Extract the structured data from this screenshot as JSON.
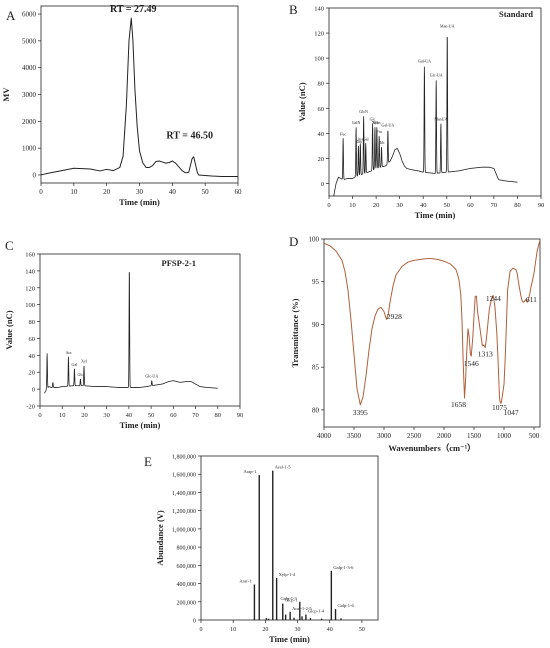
{
  "colors": {
    "ink": "#222222",
    "ir_line": "#b0603a",
    "axis": "#222222"
  },
  "chart_data": [
    {
      "id": "A",
      "panel_letter": "A",
      "type": "line",
      "title": "",
      "xlabel": "Time (min)",
      "ylabel": "MV",
      "xlim": [
        0,
        60
      ],
      "ylim": [
        -300,
        6300
      ],
      "xticks": [
        0,
        10,
        20,
        30,
        40,
        50,
        60
      ],
      "yticks": [
        0,
        1000,
        2000,
        3000,
        4000,
        5000,
        6000
      ],
      "series": [
        {
          "x": [
            0,
            2,
            5,
            10,
            15,
            18,
            20,
            22,
            24,
            25,
            26,
            26.8,
            27.49,
            28,
            28.6,
            29.3,
            30,
            31,
            32,
            33,
            34,
            35,
            36,
            37,
            38,
            39,
            40,
            41,
            42,
            43,
            44,
            45,
            45.6,
            46,
            46.5,
            47,
            47.6,
            48,
            50,
            52,
            55,
            58,
            60
          ],
          "y": [
            0,
            60,
            130,
            250,
            220,
            150,
            210,
            160,
            280,
            700,
            2600,
            5000,
            5850,
            5000,
            3200,
            1800,
            900,
            450,
            280,
            280,
            350,
            500,
            520,
            480,
            440,
            460,
            520,
            440,
            300,
            160,
            80,
            100,
            400,
            600,
            680,
            420,
            100,
            0,
            -20,
            -40,
            -60,
            -60,
            -60
          ]
        }
      ],
      "annotations": [
        {
          "text": "RT = 27.49",
          "x": 27.49,
          "y": 5850
        },
        {
          "text": "RT = 46.50",
          "x": 46.5,
          "y": 680
        }
      ]
    },
    {
      "id": "B",
      "panel_letter": "B",
      "type": "line",
      "title": "Standard",
      "xlabel": "Time (min)",
      "ylabel": "Value (nC)",
      "xlim": [
        0,
        90
      ],
      "ylim": [
        -10,
        140
      ],
      "xticks": [
        0,
        10,
        20,
        30,
        40,
        50,
        60,
        70,
        80,
        90
      ],
      "yticks": [
        0,
        20,
        40,
        60,
        80,
        100,
        120,
        140
      ],
      "baseline": [
        [
          2,
          -10
        ],
        [
          3,
          0
        ],
        [
          4,
          5
        ],
        [
          5,
          4
        ],
        [
          6,
          3
        ],
        [
          8,
          4
        ],
        [
          10,
          4
        ],
        [
          12,
          6
        ],
        [
          15,
          8
        ],
        [
          18,
          10
        ],
        [
          20,
          12
        ],
        [
          22,
          13
        ],
        [
          24,
          14
        ],
        [
          26,
          18
        ],
        [
          27,
          22
        ],
        [
          28,
          27
        ],
        [
          29,
          28
        ],
        [
          30,
          24
        ],
        [
          31,
          18
        ],
        [
          32,
          14
        ],
        [
          33,
          12
        ],
        [
          35,
          11
        ],
        [
          38,
          10
        ],
        [
          40,
          9
        ],
        [
          45,
          8
        ],
        [
          50,
          9
        ],
        [
          55,
          10
        ],
        [
          60,
          12
        ],
        [
          65,
          13
        ],
        [
          68,
          13
        ],
        [
          70,
          12
        ],
        [
          72,
          3
        ],
        [
          75,
          2
        ],
        [
          80,
          1
        ]
      ],
      "peaks": [
        {
          "label": "Fuc",
          "x": 6.0,
          "y": 36
        },
        {
          "label": "GalN",
          "x": 11.5,
          "y": 45
        },
        {
          "label": "Rha",
          "x": 12.5,
          "y": 30
        },
        {
          "label": "Ara",
          "x": 13.3,
          "y": 32
        },
        {
          "label": "GlcN",
          "x": 14.7,
          "y": 54
        },
        {
          "label": "Gal",
          "x": 15.6,
          "y": 32
        },
        {
          "label": "Glc",
          "x": 18.5,
          "y": 48
        },
        {
          "label": "Xyl",
          "x": 19.5,
          "y": 45
        },
        {
          "label": "Man",
          "x": 20.3,
          "y": 45
        },
        {
          "label": "Fru",
          "x": 21.3,
          "y": 38
        },
        {
          "label": "Rib",
          "x": 22.3,
          "y": 29
        },
        {
          "label": "Gal-UA",
          "x": 25.0,
          "y": 43
        },
        {
          "label": "Gul-UA",
          "x": 40.5,
          "y": 94
        },
        {
          "label": "Glc-UA",
          "x": 45.5,
          "y": 83
        },
        {
          "label": "ManUA",
          "x": 47.5,
          "y": 48
        },
        {
          "label": "Man-UA",
          "x": 50.2,
          "y": 122
        }
      ]
    },
    {
      "id": "C",
      "panel_letter": "C",
      "type": "line",
      "title": "PFSP-2-1",
      "xlabel": "Time (min)",
      "ylabel": "Value (nC)",
      "xlim": [
        0,
        90
      ],
      "ylim": [
        -20,
        160
      ],
      "xticks": [
        0,
        10,
        20,
        30,
        40,
        50,
        60,
        70,
        80,
        90
      ],
      "yticks": [
        -20,
        0,
        20,
        40,
        60,
        80,
        100,
        120,
        140,
        160
      ],
      "baseline": [
        [
          2,
          -5
        ],
        [
          3,
          0
        ],
        [
          4,
          3
        ],
        [
          5,
          2
        ],
        [
          8,
          2
        ],
        [
          10,
          3
        ],
        [
          15,
          4
        ],
        [
          20,
          4
        ],
        [
          25,
          3
        ],
        [
          30,
          3
        ],
        [
          35,
          2
        ],
        [
          40,
          2
        ],
        [
          45,
          2
        ],
        [
          48,
          3
        ],
        [
          50,
          4
        ],
        [
          55,
          6
        ],
        [
          58,
          9
        ],
        [
          60,
          10
        ],
        [
          63,
          8
        ],
        [
          66,
          9
        ],
        [
          68,
          9
        ],
        [
          70,
          6
        ],
        [
          72,
          3
        ],
        [
          75,
          2
        ],
        [
          80,
          1
        ]
      ],
      "peaks": [
        {
          "label": "",
          "x": 3.2,
          "y": 42
        },
        {
          "label": "",
          "x": 5.8,
          "y": 8
        },
        {
          "label": "Ara",
          "x": 12.8,
          "y": 38
        },
        {
          "label": "Gal",
          "x": 15.5,
          "y": 24
        },
        {
          "label": "Glc",
          "x": 18.2,
          "y": 12
        },
        {
          "label": "Xyl",
          "x": 19.8,
          "y": 28
        },
        {
          "label": "",
          "x": 40.2,
          "y": 145
        },
        {
          "label": "Glc-UA",
          "x": 50.3,
          "y": 10
        }
      ]
    },
    {
      "id": "D",
      "panel_letter": "D",
      "type": "line",
      "title": "",
      "xlabel": "Wavenumbers（cm⁻¹）",
      "ylabel": "Transmittance (%)",
      "xlim": [
        4000,
        400
      ],
      "ylim": [
        78,
        100
      ],
      "xticks": [
        4000,
        3500,
        3000,
        2500,
        2000,
        1500,
        1000,
        500
      ],
      "yticks": [
        80,
        85,
        90,
        95,
        100
      ],
      "series": [
        {
          "x": [
            4000,
            3900,
            3800,
            3700,
            3650,
            3600,
            3550,
            3500,
            3450,
            3395,
            3350,
            3300,
            3250,
            3200,
            3150,
            3100,
            3050,
            3000,
            2960,
            2928,
            2900,
            2850,
            2800,
            2700,
            2600,
            2500,
            2400,
            2300,
            2200,
            2100,
            2000,
            1900,
            1850,
            1800,
            1780,
            1750,
            1720,
            1700,
            1680,
            1658,
            1640,
            1620,
            1600,
            1580,
            1560,
            1546,
            1520,
            1500,
            1480,
            1460,
            1440,
            1420,
            1400,
            1380,
            1360,
            1340,
            1313,
            1290,
            1270,
            1244,
            1220,
            1200,
            1180,
            1150,
            1120,
            1100,
            1075,
            1060,
            1047,
            1030,
            1000,
            980,
            960,
            940,
            900,
            850,
            800,
            780,
            760,
            740,
            720,
            700,
            680,
            660,
            640,
            611,
            590,
            570,
            550,
            530,
            500,
            470,
            450,
            420,
            400
          ],
          "y": [
            99.5,
            99.2,
            98.6,
            97.5,
            96.2,
            94.0,
            90.5,
            86.5,
            82.5,
            80.6,
            81.5,
            84.0,
            87.0,
            89.5,
            91.0,
            91.8,
            92.0,
            91.5,
            90.6,
            91.2,
            92.6,
            94.5,
            95.8,
            96.8,
            97.3,
            97.5,
            97.6,
            97.7,
            97.7,
            97.6,
            97.4,
            97.1,
            96.8,
            96.4,
            96.0,
            95.2,
            93.5,
            90.5,
            85.5,
            81.4,
            83.5,
            87.0,
            89.5,
            88.5,
            86.5,
            86.3,
            88.5,
            91.0,
            93.3,
            93.3,
            91.5,
            90.5,
            89.5,
            88.5,
            87.5,
            87.6,
            87.3,
            88.5,
            90.0,
            91.8,
            92.6,
            93.2,
            93.4,
            92.0,
            89.0,
            86.0,
            81.4,
            80.8,
            80.8,
            81.5,
            83.0,
            86.0,
            90.0,
            94.0,
            96.2,
            96.6,
            96.4,
            96.0,
            95.0,
            94.2,
            93.4,
            92.8,
            92.6,
            92.7,
            92.9,
            92.6,
            93.0,
            93.6,
            94.4,
            95.0,
            96.0,
            97.5,
            98.5,
            99.4,
            99.8
          ]
        }
      ],
      "peak_labels": [
        {
          "text": "3395",
          "x": 3395,
          "y": 80.6
        },
        {
          "text": "2928",
          "x": 2928,
          "y": 91.2
        },
        {
          "text": "1658",
          "x": 1658,
          "y": 81.4
        },
        {
          "text": "1546",
          "x": 1546,
          "y": 86.3
        },
        {
          "text": "1313",
          "x": 1313,
          "y": 87.3
        },
        {
          "text": "1244",
          "x": 1244,
          "y": 91.8
        },
        {
          "text": "1075",
          "x": 1075,
          "y": 81.4
        },
        {
          "text": "1047",
          "x": 1047,
          "y": 80.8
        },
        {
          "text": "611",
          "x": 611,
          "y": 92.6
        }
      ]
    },
    {
      "id": "E",
      "panel_letter": "E",
      "type": "bar",
      "title": "",
      "xlabel": "Time (min)",
      "ylabel": "Abundance (V)",
      "xlim": [
        0,
        55
      ],
      "ylim": [
        0,
        1800000
      ],
      "xticks": [
        0,
        10,
        20,
        30,
        40,
        50
      ],
      "yticks": [
        0,
        200000,
        400000,
        600000,
        800000,
        1000000,
        1200000,
        1400000,
        1600000,
        1800000
      ],
      "ytick_labels": [
        "0",
        "200,000",
        "400,000",
        "600,000",
        "800,000",
        "1,000,000",
        "1,200,000",
        "1,400,000",
        "1,600,000",
        "1,800,000"
      ],
      "peaks": [
        {
          "label": "Araf-1",
          "x": 16.6,
          "y": 390000
        },
        {
          "label": "Arap-1",
          "x": 18.1,
          "y": 1590000
        },
        {
          "label": "",
          "x": 20.3,
          "y": 20000
        },
        {
          "label": "",
          "x": 21.0,
          "y": 15000
        },
        {
          "label": "Araf-1-5",
          "x": 22.3,
          "y": 1640000
        },
        {
          "label": "Xylp-1-4",
          "x": 23.5,
          "y": 460000
        },
        {
          "label": "Glcp-1",
          "x": 25.4,
          "y": 180000
        },
        {
          "label": "",
          "x": 26.3,
          "y": 60000
        },
        {
          "label": "Araf-1-2-5",
          "x": 27.7,
          "y": 90000
        },
        {
          "label": "",
          "x": 28.9,
          "y": 25000
        },
        {
          "label": "Galp-1-3",
          "x": 30.7,
          "y": 200000
        },
        {
          "label": "",
          "x": 31.4,
          "y": 40000
        },
        {
          "label": "Glcp-1-4",
          "x": 32.6,
          "y": 60000
        },
        {
          "label": "",
          "x": 34.0,
          "y": 20000
        },
        {
          "label": "",
          "x": 37.5,
          "y": 15000
        },
        {
          "label": "Galp-1-3-6",
          "x": 40.5,
          "y": 540000
        },
        {
          "label": "Galp-1-6",
          "x": 41.8,
          "y": 120000
        },
        {
          "label": "",
          "x": 43.5,
          "y": 18000
        }
      ]
    }
  ]
}
